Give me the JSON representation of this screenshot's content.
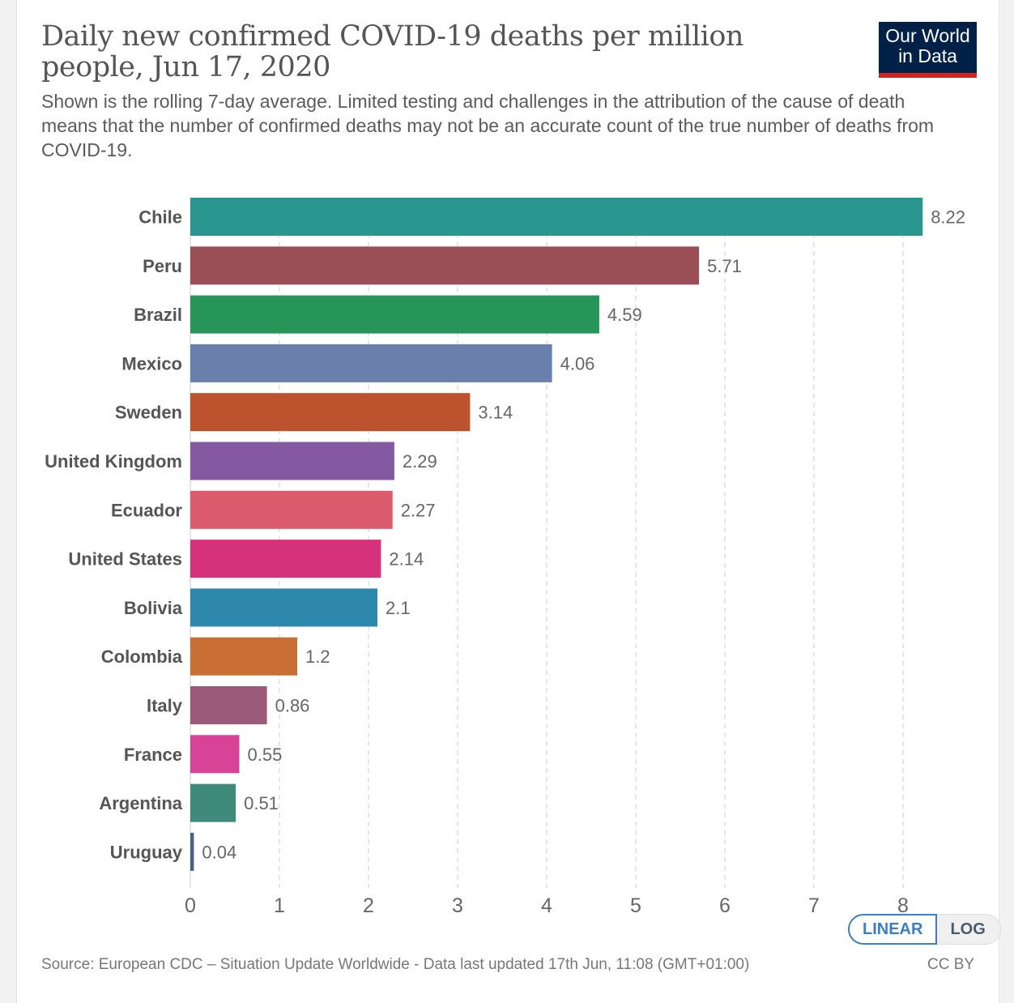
{
  "header": {
    "title": "Daily new confirmed COVID-19 deaths per million people, Jun 17, 2020",
    "subtitle": "Shown is the rolling 7-day average. Limited testing and challenges in the attribution of the cause of death means that the number of confirmed deaths may not be an accurate count of the true number of deaths from COVID-19.",
    "logo_line1": "Our World",
    "logo_line2": "in Data"
  },
  "controls": {
    "linear_label": "LINEAR",
    "log_label": "LOG",
    "selected": "LINEAR"
  },
  "footer": {
    "source": "Source: European CDC – Situation Update Worldwide - Data last updated 17th Jun, 11:08 (GMT+01:00)",
    "license": "CC BY"
  },
  "colors": {
    "logo_bg": "#002147",
    "logo_accent": "#ce261e",
    "toggle_accent": "#3c7fc1"
  },
  "chart_data": {
    "type": "bar",
    "orientation": "horizontal",
    "title": "Daily new confirmed COVID-19 deaths per million people, Jun 17, 2020",
    "xlabel": "",
    "ylabel": "",
    "xlim": [
      0,
      8
    ],
    "grid": true,
    "xticks": [
      "0",
      "1",
      "2",
      "3",
      "4",
      "5",
      "6",
      "7",
      "8"
    ],
    "categories": [
      "Chile",
      "Peru",
      "Brazil",
      "Mexico",
      "Sweden",
      "United Kingdom",
      "Ecuador",
      "United States",
      "Bolivia",
      "Colombia",
      "Italy",
      "France",
      "Argentina",
      "Uruguay"
    ],
    "values": [
      8.22,
      5.71,
      4.59,
      4.06,
      3.14,
      2.29,
      2.27,
      2.14,
      2.1,
      1.2,
      0.86,
      0.55,
      0.51,
      0.04
    ],
    "value_labels": [
      "8.22",
      "5.71",
      "4.59",
      "4.06",
      "3.14",
      "2.29",
      "2.27",
      "2.14",
      "2.1",
      "1.2",
      "0.86",
      "0.55",
      "0.51",
      "0.04"
    ],
    "bar_colors": [
      "#2a9690",
      "#9a4e56",
      "#279458",
      "#6a7fac",
      "#bc532e",
      "#8459a2",
      "#dc5b6c",
      "#d6327b",
      "#2e87ac",
      "#c96f36",
      "#9b5a79",
      "#d94397",
      "#3f8a7a",
      "#4d5f82"
    ]
  }
}
